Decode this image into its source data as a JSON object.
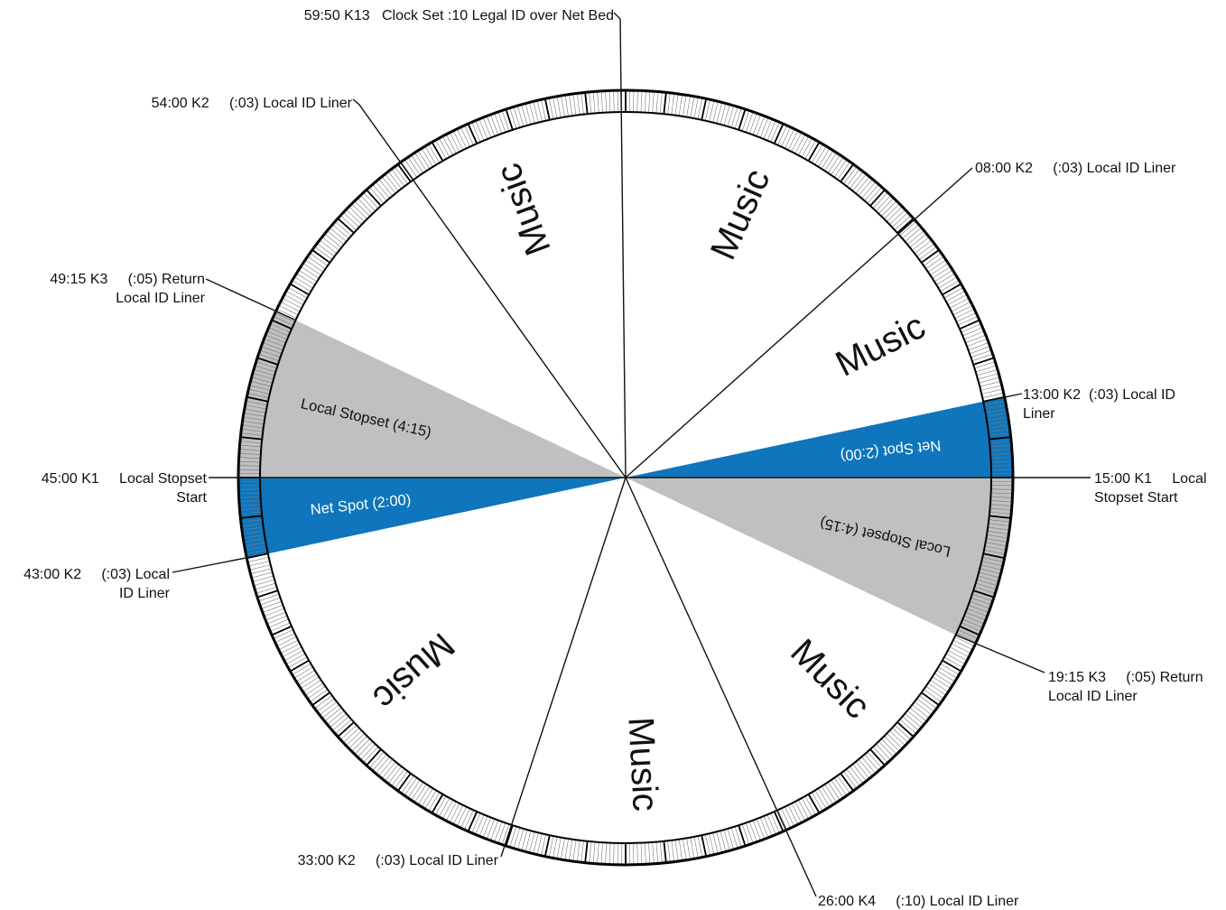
{
  "colors": {
    "background": "#ffffff",
    "music": "#ffffff",
    "local_stopset": "#c0c0c0",
    "net_spot": "#0f75bc",
    "outline": "#000000",
    "tick": "#7a7a7a"
  },
  "chart_data": {
    "type": "pie",
    "title": "",
    "minutes_per_revolution": 60,
    "segments": [
      {
        "label": "Music",
        "start_min": 0,
        "end_min": 13,
        "kind": "music"
      },
      {
        "label": "Net Spot (2:00)",
        "start_min": 13,
        "end_min": 15,
        "kind": "net_spot"
      },
      {
        "label": "Local Stopset (4:15)",
        "start_min": 15,
        "end_min": 19.25,
        "kind": "local_stopset"
      },
      {
        "label": "Music",
        "start_min": 19.25,
        "end_min": 43,
        "kind": "music"
      },
      {
        "label": "Net Spot (2:00)",
        "start_min": 43,
        "end_min": 45,
        "kind": "net_spot"
      },
      {
        "label": "Local Stopset (4:15)",
        "start_min": 45,
        "end_min": 49.25,
        "kind": "local_stopset"
      },
      {
        "label": "Music",
        "start_min": 49.25,
        "end_min": 60,
        "kind": "music"
      }
    ],
    "music_labels": [
      {
        "text": "Music",
        "at_min": 4
      },
      {
        "text": "Music",
        "at_min": 10.5
      },
      {
        "text": "Music",
        "at_min": 22.5
      },
      {
        "text": "Music",
        "at_min": 29.5
      },
      {
        "text": "Music",
        "at_min": 38
      },
      {
        "text": "Music",
        "at_min": 56.6
      }
    ],
    "cues": [
      {
        "time": "59:50",
        "line1": "59:50 K13   Clock Set :10 Legal ID over Net Bed",
        "line2": ""
      },
      {
        "time": "08:00",
        "line1": "08:00 K2     (:03) Local ID Liner",
        "line2": ""
      },
      {
        "time": "13:00",
        "line1": "13:00 K2  (:03) Local ID",
        "line2": "Liner"
      },
      {
        "time": "15:00",
        "line1": "15:00 K1     Local",
        "line2": "Stopset Start"
      },
      {
        "time": "19:15",
        "line1": "19:15 K3     (:05) Return",
        "line2": "Local ID Liner"
      },
      {
        "time": "26:00",
        "line1": "26:00 K4     (:10) Local ID Liner",
        "line2": ""
      },
      {
        "time": "33:00",
        "line1": "33:00 K2     (:03) Local ID Liner",
        "line2": ""
      },
      {
        "time": "43:00",
        "line1": "43:00 K2     (:03) Local",
        "line2": "ID Liner"
      },
      {
        "time": "45:00",
        "line1": "45:00 K1     Local Stopset",
        "line2": "Start"
      },
      {
        "time": "49:15",
        "line1": "49:15 K3     (:05) Return",
        "line2": "Local ID Liner"
      },
      {
        "time": "54:00",
        "line1": "54:00 K2     (:03) Local ID Liner",
        "line2": ""
      }
    ]
  }
}
